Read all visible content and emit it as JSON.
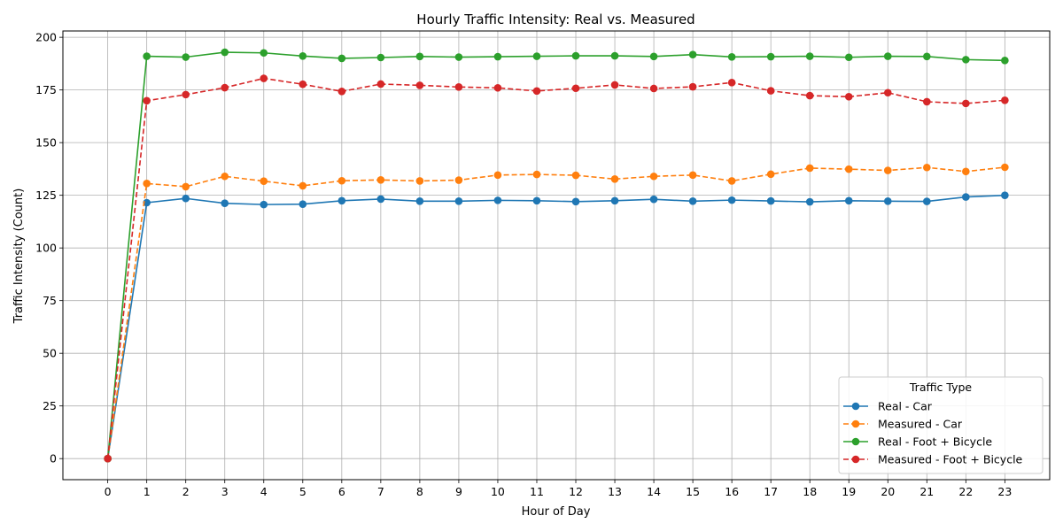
{
  "chart_data": {
    "type": "line",
    "title": "Hourly Traffic Intensity: Real vs. Measured",
    "xlabel": "Hour of Day",
    "ylabel": "Traffic Intensity (Count)",
    "x": [
      0,
      1,
      2,
      3,
      4,
      5,
      6,
      7,
      8,
      9,
      10,
      11,
      12,
      13,
      14,
      15,
      16,
      17,
      18,
      19,
      20,
      21,
      22,
      23
    ],
    "xticks": [
      "0",
      "1",
      "2",
      "3",
      "4",
      "5",
      "6",
      "7",
      "8",
      "9",
      "10",
      "11",
      "12",
      "13",
      "14",
      "15",
      "16",
      "17",
      "18",
      "19",
      "20",
      "21",
      "22",
      "23"
    ],
    "yticks": [
      0,
      25,
      50,
      75,
      100,
      125,
      150,
      175,
      200
    ],
    "xlim": [
      -1.15,
      24.15
    ],
    "ylim": [
      -10,
      203
    ],
    "grid": true,
    "legend": {
      "title": "Traffic Type",
      "placement": "lower-right"
    },
    "series": [
      {
        "name": "Real - Car",
        "color": "#1f77b4",
        "dashed": false,
        "values": [
          0,
          121.5,
          123.5,
          121.2,
          120.6,
          120.8,
          122.4,
          123.2,
          122.2,
          122.2,
          122.6,
          122.4,
          122.0,
          122.4,
          123.1,
          122.2,
          122.7,
          122.3,
          121.9,
          122.4,
          122.2,
          122.1,
          124.2,
          125.0
        ]
      },
      {
        "name": "Measured - Car",
        "color": "#ff7f0e",
        "dashed": true,
        "values": [
          0,
          130.6,
          129.1,
          134.0,
          131.7,
          129.5,
          131.9,
          132.3,
          131.8,
          132.2,
          134.6,
          134.9,
          134.5,
          132.7,
          134.0,
          134.6,
          131.8,
          135.0,
          137.9,
          137.4,
          136.8,
          138.2,
          136.3,
          138.3
        ]
      },
      {
        "name": "Real - Foot + Bicycle",
        "color": "#2ca02c",
        "dashed": false,
        "values": [
          0,
          191.0,
          190.6,
          192.9,
          192.6,
          191.1,
          190.0,
          190.4,
          190.9,
          190.6,
          190.8,
          191.0,
          191.2,
          191.2,
          190.9,
          191.8,
          190.7,
          190.8,
          191.0,
          190.5,
          191.0,
          190.9,
          189.4,
          189.0
        ]
      },
      {
        "name": "Measured - Foot + Bicycle",
        "color": "#d62728",
        "dashed": true,
        "values": [
          0,
          169.9,
          172.8,
          176.1,
          180.5,
          177.7,
          174.3,
          177.8,
          177.2,
          176.4,
          176.0,
          174.5,
          175.8,
          177.4,
          175.7,
          176.5,
          178.5,
          174.6,
          172.3,
          171.8,
          173.7,
          169.4,
          168.6,
          170.1
        ]
      }
    ]
  }
}
